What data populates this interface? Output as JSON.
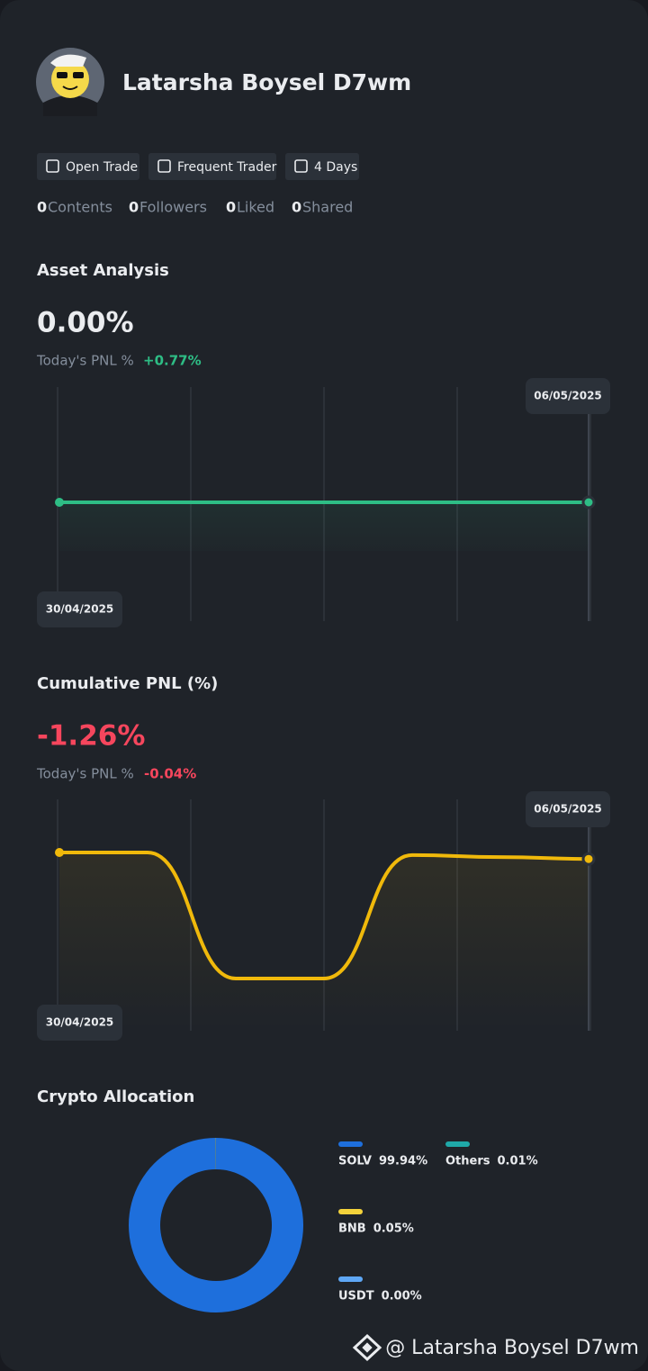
{
  "profile": {
    "name": "Latarsha Boysel D7wm",
    "tags": [
      "Open Trade",
      "Frequent Trader",
      "4 Days"
    ],
    "stats": [
      {
        "count": 0,
        "label": "Contents"
      },
      {
        "count": 0,
        "label": "Followers"
      },
      {
        "count": 0,
        "label": "Liked"
      },
      {
        "count": 0,
        "label": "Shared"
      }
    ]
  },
  "asset_analysis": {
    "title": "Asset Analysis",
    "value": "0.00%",
    "today_label": "Today's PNL %",
    "today_value": "+0.77%"
  },
  "cumulative_pnl": {
    "title": "Cumulative PNL (%)",
    "value": "-1.26%",
    "today_label": "Today's PNL %",
    "today_value": "-0.04%"
  },
  "crypto_allocation": {
    "title": "Crypto Allocation"
  },
  "chart_data": [
    {
      "type": "line",
      "categories": [
        "30/04/2025",
        null,
        null,
        null,
        null,
        null,
        "06/05/2025"
      ],
      "series": [
        {
          "color": "#2ebd85",
          "values": [
            0,
            0,
            0,
            0,
            0,
            0,
            0
          ]
        }
      ]
    },
    {
      "type": "line",
      "categories": [
        "30/04/2025",
        null,
        null,
        null,
        null,
        null,
        "06/05/2025"
      ],
      "series": [
        {
          "color": "#f0b90b",
          "values": [
            0,
            0,
            -24.5,
            -24.5,
            -0.5,
            -0.9,
            -1.26
          ]
        }
      ]
    },
    {
      "type": "pie",
      "categories": [
        "SOLV",
        "BNB",
        "USDT",
        "Others"
      ],
      "values": [
        99.94,
        0.05,
        0,
        0.01
      ],
      "value_labels": [
        "99.94%",
        "0.05%",
        "0.00%",
        "0.01%"
      ],
      "colors": [
        "#1e6fdc",
        "#f3d23b",
        "#5ea7f5",
        "#1fa8a8"
      ]
    }
  ],
  "footer": {
    "handle": "@ Latarsha Boysel D7wm"
  }
}
